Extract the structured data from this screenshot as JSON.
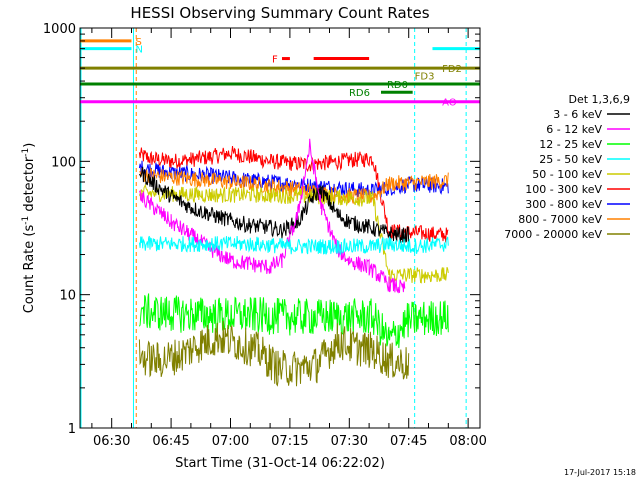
{
  "chart_data": {
    "type": "line",
    "title": "HESSI Observing Summary Count Rates",
    "xlabel": "Start Time (31-Oct-14 06:22:02)",
    "ylabel_main": "Count Rate (s",
    "ylabel_sup1": "-1",
    "ylabel_mid": " detector",
    "ylabel_sup2": "-1",
    "ylabel_end": ")",
    "yscale": "log",
    "ylim": [
      1,
      1000
    ],
    "xlim_min": [
      382,
      483
    ],
    "y_ticks": [
      "1",
      "10",
      "100",
      "1000"
    ],
    "x_ticks": [
      {
        "label": "06:30",
        "min": 390
      },
      {
        "label": "06:45",
        "min": 405
      },
      {
        "label": "07:00",
        "min": 420
      },
      {
        "label": "07:15",
        "min": 435
      },
      {
        "label": "07:30",
        "min": 450
      },
      {
        "label": "07:45",
        "min": 465
      },
      {
        "label": "08:00",
        "min": 480
      }
    ],
    "legend_title": "Det 1,3,6,9",
    "legend_position": "right",
    "series": [
      {
        "name": "3 - 6 keV",
        "color": "#000000"
      },
      {
        "name": "6 - 12 keV",
        "color": "#ff00ff"
      },
      {
        "name": "12 - 25 keV",
        "color": "#00ff00"
      },
      {
        "name": "25 - 50 keV",
        "color": "#00ffff"
      },
      {
        "name": "50 - 100 keV",
        "color": "#cccc00"
      },
      {
        "name": "100 - 300 keV",
        "color": "#ff0000"
      },
      {
        "name": "300 - 800 keV",
        "color": "#0000ff"
      },
      {
        "name": "800 - 7000 keV",
        "color": "#ff8000"
      },
      {
        "name": "7000 - 20000 keV",
        "color": "#808000"
      }
    ],
    "flag_bars": [
      {
        "label": "S",
        "color": "#ff8000",
        "y": 800,
        "segments": [
          [
            382,
            395
          ]
        ]
      },
      {
        "label": "N",
        "color": "#00ffff",
        "y": 700,
        "segments": [
          [
            382,
            395
          ],
          [
            471,
            483
          ]
        ]
      },
      {
        "label": "FD2",
        "color": "#808000",
        "y": 500,
        "segments": [
          [
            382,
            483
          ]
        ]
      },
      {
        "label": "FD3",
        "color": "#808000",
        "y": 440,
        "segments": []
      },
      {
        "label": "RD0",
        "color": "#008000",
        "y": 380,
        "segments": [
          [
            382,
            483
          ]
        ]
      },
      {
        "label": "RD6",
        "color": "#008000",
        "y": 330,
        "segments": [
          [
            458,
            466
          ]
        ]
      },
      {
        "label": "AO",
        "color": "#ff00ff",
        "y": 280,
        "segments": [
          [
            382,
            483
          ]
        ]
      },
      {
        "label": "F",
        "color": "#ff0000",
        "y": 590,
        "segments": [
          [
            433,
            435
          ],
          [
            441,
            455
          ]
        ]
      }
    ],
    "night_lines": [
      395.5,
      466.5,
      479.5
    ],
    "night_line_color": "#00ffff",
    "saa_lines": [
      396.2
    ],
    "saa_line_color": "#ff8000",
    "trace_min": [
      396,
      475
    ],
    "traces": [
      {
        "color": "#ff0000",
        "pts": [
          [
            397,
            112
          ],
          [
            400,
            105
          ],
          [
            405,
            100
          ],
          [
            410,
            103
          ],
          [
            415,
            108
          ],
          [
            420,
            115
          ],
          [
            425,
            108
          ],
          [
            430,
            100
          ],
          [
            435,
            97
          ],
          [
            440,
            95
          ],
          [
            445,
            98
          ],
          [
            450,
            102
          ],
          [
            456,
            105
          ],
          [
            460,
            30
          ],
          [
            475,
            28
          ]
        ]
      },
      {
        "color": "#0000ff",
        "pts": [
          [
            397,
            90
          ],
          [
            405,
            82
          ],
          [
            415,
            78
          ],
          [
            425,
            72
          ],
          [
            435,
            68
          ],
          [
            445,
            64
          ],
          [
            450,
            62
          ],
          [
            456,
            60
          ],
          [
            460,
            63
          ],
          [
            465,
            67
          ],
          [
            470,
            66
          ],
          [
            475,
            65
          ]
        ]
      },
      {
        "color": "#ff8000",
        "pts": [
          [
            397,
            80
          ],
          [
            405,
            76
          ],
          [
            415,
            72
          ],
          [
            425,
            68
          ],
          [
            435,
            63
          ],
          [
            445,
            57
          ],
          [
            450,
            55
          ],
          [
            456,
            54
          ],
          [
            460,
            68
          ],
          [
            470,
            70
          ],
          [
            475,
            72
          ]
        ]
      },
      {
        "color": "#cccc00",
        "pts": [
          [
            397,
            58
          ],
          [
            405,
            57
          ],
          [
            415,
            56
          ],
          [
            425,
            56
          ],
          [
            435,
            55
          ],
          [
            445,
            54
          ],
          [
            450,
            53
          ],
          [
            456,
            52
          ],
          [
            460,
            14
          ],
          [
            475,
            14
          ]
        ]
      },
      {
        "color": "#000000",
        "pts": [
          [
            397,
            85
          ],
          [
            400,
            70
          ],
          [
            405,
            55
          ],
          [
            410,
            45
          ],
          [
            415,
            40
          ],
          [
            420,
            36
          ],
          [
            425,
            33
          ],
          [
            430,
            32
          ],
          [
            433,
            30
          ],
          [
            437,
            35
          ],
          [
            441,
            55
          ],
          [
            443,
            60
          ],
          [
            447,
            40
          ],
          [
            450,
            35
          ],
          [
            455,
            32
          ],
          [
            458,
            30
          ],
          [
            462,
            28
          ],
          [
            465,
            28
          ]
        ]
      },
      {
        "color": "#ff00ff",
        "pts": [
          [
            397,
            55
          ],
          [
            402,
            42
          ],
          [
            405,
            35
          ],
          [
            410,
            28
          ],
          [
            415,
            22
          ],
          [
            420,
            18
          ],
          [
            425,
            17
          ],
          [
            430,
            16
          ],
          [
            433,
            18
          ],
          [
            437,
            40
          ],
          [
            440,
            130
          ],
          [
            443,
            45
          ],
          [
            447,
            22
          ],
          [
            450,
            18
          ],
          [
            455,
            16
          ],
          [
            460,
            12
          ],
          [
            464,
            11
          ]
        ]
      },
      {
        "color": "#00ffff",
        "pts": [
          [
            397,
            24
          ],
          [
            405,
            24
          ],
          [
            415,
            24
          ],
          [
            425,
            24
          ],
          [
            435,
            23
          ],
          [
            445,
            23
          ],
          [
            456,
            23
          ],
          [
            460,
            24
          ],
          [
            465,
            23
          ],
          [
            475,
            24
          ]
        ]
      },
      {
        "color": "#00ff00",
        "pts": [
          [
            397,
            7.5
          ],
          [
            405,
            7.2
          ],
          [
            415,
            7.0
          ],
          [
            425,
            7.0
          ],
          [
            435,
            6.8
          ],
          [
            445,
            6.8
          ],
          [
            456,
            6.8
          ],
          [
            460,
            4.5
          ],
          [
            465,
            6.5
          ],
          [
            475,
            6.8
          ]
        ]
      },
      {
        "color": "#808000",
        "pts": [
          [
            397,
            3.4
          ],
          [
            402,
            3.2
          ],
          [
            407,
            3.5
          ],
          [
            412,
            4.2
          ],
          [
            417,
            4.8
          ],
          [
            422,
            4.3
          ],
          [
            427,
            3.8
          ],
          [
            432,
            2.8
          ],
          [
            437,
            2.8
          ],
          [
            442,
            3.0
          ],
          [
            447,
            4.5
          ],
          [
            452,
            4.0
          ],
          [
            456,
            3.8
          ],
          [
            460,
            3.2
          ],
          [
            465,
            3.0
          ]
        ]
      }
    ]
  },
  "footer": {
    "date_stamp": "17-Jul-2017 15:18"
  }
}
